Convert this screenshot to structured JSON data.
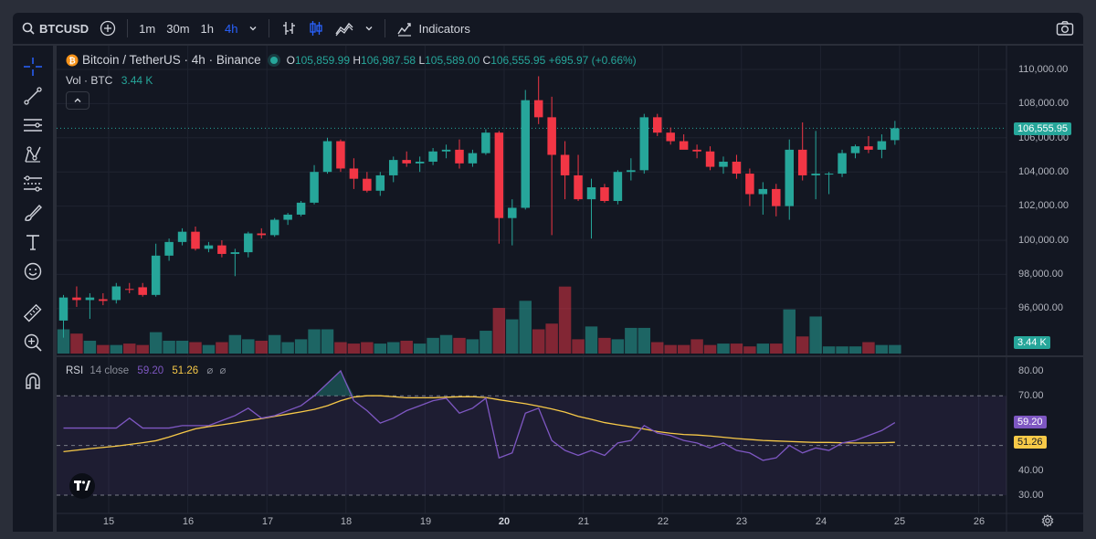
{
  "toolbar": {
    "symbol": "BTCUSD",
    "timeframes": [
      "1m",
      "30m",
      "1h",
      "4h"
    ],
    "active_timeframe": "4h",
    "indicators_label": "Indicators"
  },
  "legend": {
    "title": "Bitcoin / TetherUS · 4h · Binance",
    "open_label": "O",
    "open": "105,859.99",
    "high_label": "H",
    "high": "106,987.58",
    "low_label": "L",
    "low": "105,589.00",
    "close_label": "C",
    "close": "106,555.95",
    "change": "+695.97 (+0.66%)",
    "vol_label": "Vol · BTC",
    "vol_value": "3.44 K"
  },
  "rsi_legend": {
    "label": "RSI",
    "params": "14 close",
    "rsi_value": "59.20",
    "ma_value": "51.26"
  },
  "price_axis": {
    "ticks": [
      "110,000.00",
      "108,000.00",
      "106,000.00",
      "104,000.00",
      "102,000.00",
      "100,000.00",
      "98,000.00",
      "96,000.00"
    ],
    "current_price": "106,555.95",
    "volume_badge": "3.44 K"
  },
  "rsi_axis": {
    "ticks": [
      "80.00",
      "70.00",
      "40.00",
      "30.00"
    ],
    "rsi_badge": "59.20",
    "ma_badge": "51.26"
  },
  "time_axis": {
    "labels": [
      "15",
      "16",
      "17",
      "18",
      "19",
      "20",
      "21",
      "22",
      "23",
      "24",
      "25",
      "26"
    ]
  },
  "colors": {
    "up": "#26a69a",
    "down": "#f23645",
    "rsi": "#7e57c2",
    "rsi_ma": "#f7c948",
    "accent": "#2962ff",
    "background": "#131722"
  },
  "chart_data": {
    "type": "candlestick",
    "price_range": [
      95000,
      110800
    ],
    "candles": [
      {
        "o": 95300,
        "h": 96800,
        "l": 94300,
        "c": 96650
      },
      {
        "o": 96650,
        "h": 97300,
        "l": 96100,
        "c": 96500
      },
      {
        "o": 96500,
        "h": 96900,
        "l": 95400,
        "c": 96650
      },
      {
        "o": 96550,
        "h": 96900,
        "l": 96200,
        "c": 96450
      },
      {
        "o": 96500,
        "h": 97500,
        "l": 96300,
        "c": 97300
      },
      {
        "o": 97150,
        "h": 97500,
        "l": 96900,
        "c": 97100
      },
      {
        "o": 97250,
        "h": 97500,
        "l": 96700,
        "c": 96800
      },
      {
        "o": 96800,
        "h": 99800,
        "l": 96700,
        "c": 99100
      },
      {
        "o": 99100,
        "h": 100100,
        "l": 98800,
        "c": 99900
      },
      {
        "o": 99900,
        "h": 100700,
        "l": 99700,
        "c": 100500
      },
      {
        "o": 100500,
        "h": 100800,
        "l": 99400,
        "c": 99500
      },
      {
        "o": 99500,
        "h": 99900,
        "l": 99300,
        "c": 99700
      },
      {
        "o": 99700,
        "h": 100000,
        "l": 99000,
        "c": 99200
      },
      {
        "o": 99200,
        "h": 99500,
        "l": 97900,
        "c": 99300
      },
      {
        "o": 99300,
        "h": 100500,
        "l": 99000,
        "c": 100400
      },
      {
        "o": 100400,
        "h": 100700,
        "l": 100100,
        "c": 100300
      },
      {
        "o": 100300,
        "h": 101300,
        "l": 100200,
        "c": 101200
      },
      {
        "o": 101200,
        "h": 101600,
        "l": 100900,
        "c": 101500
      },
      {
        "o": 101500,
        "h": 102300,
        "l": 101400,
        "c": 102200
      },
      {
        "o": 102200,
        "h": 104400,
        "l": 102100,
        "c": 104000
      },
      {
        "o": 104000,
        "h": 106000,
        "l": 103900,
        "c": 105800
      },
      {
        "o": 105800,
        "h": 105900,
        "l": 104000,
        "c": 104200
      },
      {
        "o": 104200,
        "h": 104800,
        "l": 103000,
        "c": 103600
      },
      {
        "o": 103600,
        "h": 104000,
        "l": 102800,
        "c": 102900
      },
      {
        "o": 102900,
        "h": 104000,
        "l": 102600,
        "c": 103800
      },
      {
        "o": 103800,
        "h": 104900,
        "l": 103400,
        "c": 104700
      },
      {
        "o": 104700,
        "h": 105200,
        "l": 104300,
        "c": 104500
      },
      {
        "o": 104500,
        "h": 104900,
        "l": 104000,
        "c": 104600
      },
      {
        "o": 104600,
        "h": 105400,
        "l": 104400,
        "c": 105200
      },
      {
        "o": 105200,
        "h": 105600,
        "l": 104800,
        "c": 105300
      },
      {
        "o": 105300,
        "h": 105900,
        "l": 104200,
        "c": 104500
      },
      {
        "o": 104500,
        "h": 105300,
        "l": 104300,
        "c": 105100
      },
      {
        "o": 105100,
        "h": 106500,
        "l": 105000,
        "c": 106300
      },
      {
        "o": 106300,
        "h": 106400,
        "l": 99800,
        "c": 101300
      },
      {
        "o": 101300,
        "h": 102400,
        "l": 99700,
        "c": 101900
      },
      {
        "o": 101900,
        "h": 108800,
        "l": 101800,
        "c": 108200
      },
      {
        "o": 108200,
        "h": 109600,
        "l": 106800,
        "c": 107200
      },
      {
        "o": 107200,
        "h": 108400,
        "l": 100300,
        "c": 105000
      },
      {
        "o": 105000,
        "h": 105800,
        "l": 102400,
        "c": 103800
      },
      {
        "o": 103800,
        "h": 105000,
        "l": 102300,
        "c": 102400
      },
      {
        "o": 102400,
        "h": 103600,
        "l": 100100,
        "c": 103100
      },
      {
        "o": 103100,
        "h": 103300,
        "l": 102200,
        "c": 102300
      },
      {
        "o": 102300,
        "h": 104100,
        "l": 102100,
        "c": 104000
      },
      {
        "o": 104000,
        "h": 104800,
        "l": 103500,
        "c": 104100
      },
      {
        "o": 104100,
        "h": 107400,
        "l": 103900,
        "c": 107200
      },
      {
        "o": 107200,
        "h": 107400,
        "l": 106100,
        "c": 106300
      },
      {
        "o": 106300,
        "h": 106600,
        "l": 105600,
        "c": 105800
      },
      {
        "o": 105800,
        "h": 106200,
        "l": 105400,
        "c": 105300
      },
      {
        "o": 105300,
        "h": 105600,
        "l": 104800,
        "c": 105200
      },
      {
        "o": 105200,
        "h": 105500,
        "l": 104100,
        "c": 104300
      },
      {
        "o": 104300,
        "h": 104900,
        "l": 103900,
        "c": 104600
      },
      {
        "o": 104600,
        "h": 105000,
        "l": 103600,
        "c": 103900
      },
      {
        "o": 103900,
        "h": 104200,
        "l": 102000,
        "c": 102700
      },
      {
        "o": 102700,
        "h": 103400,
        "l": 101500,
        "c": 103000
      },
      {
        "o": 103000,
        "h": 103300,
        "l": 101400,
        "c": 102000
      },
      {
        "o": 102000,
        "h": 105900,
        "l": 101200,
        "c": 105300
      },
      {
        "o": 105300,
        "h": 106900,
        "l": 103500,
        "c": 103800
      },
      {
        "o": 103800,
        "h": 106400,
        "l": 102400,
        "c": 103900
      },
      {
        "o": 103900,
        "h": 104000,
        "l": 102700,
        "c": 103900
      },
      {
        "o": 103900,
        "h": 105300,
        "l": 103700,
        "c": 105100
      },
      {
        "o": 105100,
        "h": 105600,
        "l": 104800,
        "c": 105500
      },
      {
        "o": 105500,
        "h": 106100,
        "l": 105100,
        "c": 105300
      },
      {
        "o": 105300,
        "h": 106200,
        "l": 104800,
        "c": 105800
      },
      {
        "o": 105859.99,
        "h": 106987.58,
        "l": 105589.0,
        "c": 106555.95
      }
    ],
    "volume": [
      1.7,
      1.4,
      0.9,
      0.6,
      0.6,
      0.7,
      0.6,
      1.5,
      0.9,
      0.9,
      0.8,
      0.6,
      0.8,
      1.3,
      1.0,
      0.9,
      1.3,
      0.8,
      1.0,
      1.7,
      1.7,
      0.8,
      0.7,
      0.8,
      0.7,
      0.8,
      0.9,
      0.7,
      1.1,
      1.3,
      1.1,
      1.0,
      1.6,
      3.2,
      2.4,
      3.7,
      1.7,
      2.1,
      4.7,
      1.0,
      1.9,
      1.1,
      1.0,
      1.8,
      1.8,
      0.8,
      0.6,
      0.6,
      1.0,
      0.6,
      0.7,
      0.7,
      0.5,
      0.7,
      0.7,
      3.1,
      1.2,
      2.6,
      0.5,
      0.5,
      0.5,
      0.8,
      0.6,
      0.6
    ],
    "rsi": [
      57,
      57,
      57,
      57,
      57,
      61,
      57,
      57,
      57,
      58,
      58,
      58,
      60,
      62,
      65,
      61,
      62,
      64,
      66,
      70,
      75,
      80,
      68,
      64,
      59,
      61,
      64,
      66,
      68,
      69,
      63,
      65,
      69,
      45,
      47,
      63,
      65,
      52,
      48,
      46,
      48,
      46,
      51,
      52,
      58,
      55,
      54,
      52,
      51,
      49,
      51,
      48,
      47,
      44,
      45,
      50,
      47,
      49,
      48,
      51,
      52,
      54,
      56,
      59.2
    ],
    "rsi_ma": [
      47.5,
      48.1,
      48.7,
      49.2,
      49.7,
      50.4,
      51.1,
      51.9,
      53.4,
      55.1,
      56.7,
      57.6,
      58.3,
      59.1,
      60,
      60.8,
      61.7,
      62.6,
      63.5,
      64.5,
      66,
      68,
      69.5,
      70,
      70,
      69.6,
      69.2,
      69.2,
      69.2,
      69.4,
      69.6,
      69.6,
      69.3,
      68.4,
      67.6,
      66.8,
      65.8,
      64.7,
      63.4,
      61.7,
      60.5,
      59.2,
      58.3,
      57.5,
      56.6,
      55.6,
      54.9,
      54.4,
      54.2,
      53.8,
      53.3,
      52.8,
      52.4,
      52,
      51.8,
      51.6,
      51.4,
      51.2,
      51.2,
      51.1,
      51,
      51,
      51.1,
      51.26
    ],
    "rsi_range": [
      25,
      83
    ],
    "rsi_levels": [
      70,
      50,
      30
    ]
  }
}
